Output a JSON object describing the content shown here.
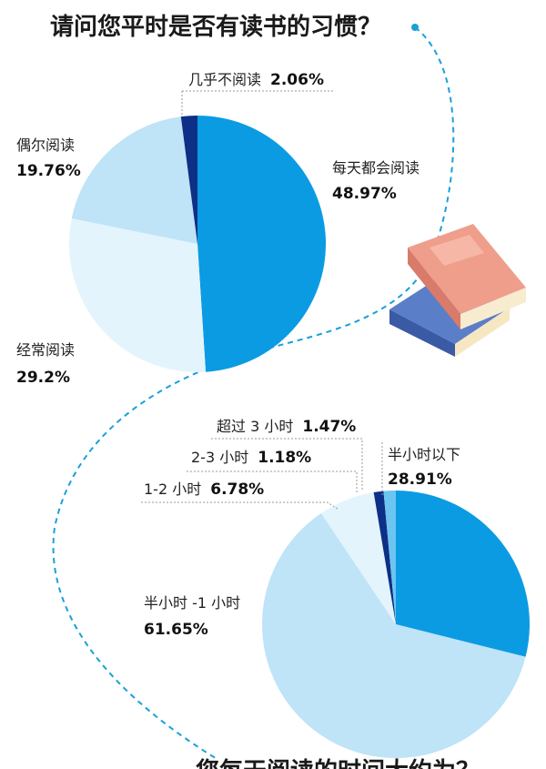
{
  "chart_data": [
    {
      "type": "pie",
      "title": "请问您平时是否有读书的习惯？",
      "slices": [
        {
          "label": "每天都会阅读",
          "value": 48.97,
          "value_label": "48.97%",
          "color": "#0b9be3"
        },
        {
          "label": "经常阅读",
          "value": 29.2,
          "value_label": "29.2%",
          "color": "#e4f4fc"
        },
        {
          "label": "偶尔阅读",
          "value": 19.76,
          "value_label": "19.76%",
          "color": "#bfe3f7"
        },
        {
          "label": "几乎不阅读",
          "value": 2.06,
          "value_label": "2.06%",
          "color": "#0d2f86"
        }
      ]
    },
    {
      "type": "pie",
      "title": "您每天阅读的时间大约为？",
      "slices": [
        {
          "label": "半小时以下",
          "value": 28.91,
          "value_label": "28.91%",
          "color": "#0b9be3"
        },
        {
          "label": "半小时 -1 小时",
          "value": 61.65,
          "value_label": "61.65%",
          "color": "#bfe3f7"
        },
        {
          "label": "1-2 小时",
          "value": 6.78,
          "value_label": "6.78%",
          "color": "#e4f4fc"
        },
        {
          "label": "2-3 小时",
          "value": 1.18,
          "value_label": "1.18%",
          "color": "#0d2f86"
        },
        {
          "label": "超过 3 小时",
          "value": 1.47,
          "value_label": "1.47%",
          "color": "#6cc4f0"
        }
      ]
    }
  ]
}
